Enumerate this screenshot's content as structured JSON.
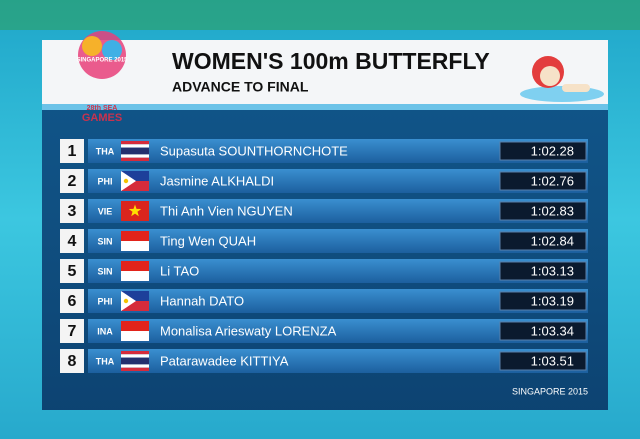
{
  "header": {
    "title": "WOMEN'S 100m BUTTERFLY",
    "subtitle": "ADVANCE TO FINAL",
    "logo_top": "SINGAPORE 2015",
    "logo_edition": "28th SEA",
    "logo_games": "GAMES"
  },
  "table": {
    "rows": [
      {
        "rank": 1,
        "country": "THA",
        "name": "Supasuta SOUNTHORNCHOTE",
        "time": "1:02.28"
      },
      {
        "rank": 2,
        "country": "PHI",
        "name": "Jasmine ALKHALDI",
        "time": "1:02.76"
      },
      {
        "rank": 3,
        "country": "VIE",
        "name": "Thi Anh Vien NGUYEN",
        "time": "1:02.83"
      },
      {
        "rank": 4,
        "country": "SIN",
        "name": "Ting Wen QUAH",
        "time": "1:02.84"
      },
      {
        "rank": 5,
        "country": "SIN",
        "name": "Li TAO",
        "time": "1:03.13"
      },
      {
        "rank": 6,
        "country": "PHI",
        "name": "Hannah DATO",
        "time": "1:03.19"
      },
      {
        "rank": 7,
        "country": "INA",
        "name": "Monalisa Arieswaty LORENZA",
        "time": "1:03.34"
      },
      {
        "rank": 8,
        "country": "THA",
        "name": "Patarawadee KITTIYA",
        "time": "1:03.51"
      }
    ]
  },
  "footer": {
    "text": "SINGAPORE 2015"
  }
}
